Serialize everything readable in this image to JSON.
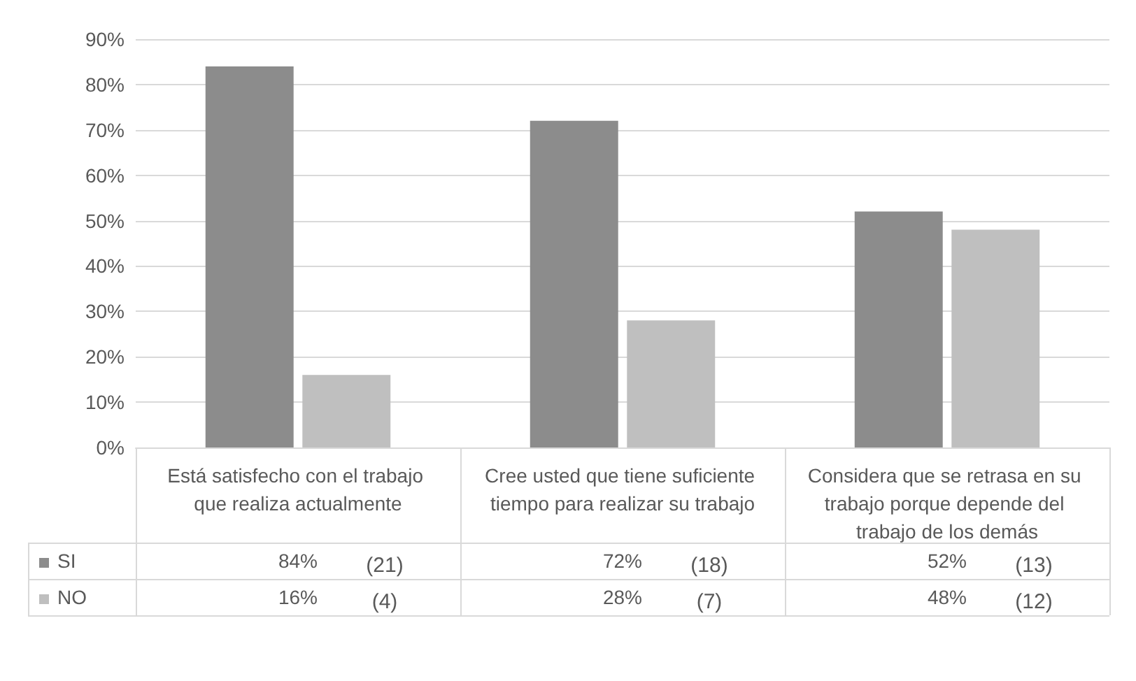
{
  "chart_data": {
    "type": "bar",
    "categories": [
      "Está satisfecho con el trabajo que realiza actualmente",
      "Cree usted que tiene suficiente tiempo para realizar su trabajo",
      "Considera que se retrasa en su trabajo porque depende del trabajo de los demás"
    ],
    "series": [
      {
        "name": "SI",
        "color": "#8c8c8c",
        "values": [
          84,
          72,
          52
        ],
        "value_labels": [
          "84%",
          "72%",
          "52%"
        ]
      },
      {
        "name": "NO",
        "color": "#bfbfbf",
        "values": [
          16,
          28,
          48
        ],
        "value_labels": [
          "16%",
          "28%",
          "48%"
        ]
      }
    ],
    "annotations": [
      "(21)",
      "(18)",
      "(13)",
      "(4)",
      "(7)",
      "(12)"
    ],
    "ylim": [
      0,
      90
    ],
    "yticks": [
      {
        "value": 0,
        "label": "0%"
      },
      {
        "value": 10,
        "label": "10%"
      },
      {
        "value": 20,
        "label": "20%"
      },
      {
        "value": 30,
        "label": "30%"
      },
      {
        "value": 40,
        "label": "40%"
      },
      {
        "value": 50,
        "label": "50%"
      },
      {
        "value": 60,
        "label": "60%"
      },
      {
        "value": 70,
        "label": "70%"
      },
      {
        "value": 80,
        "label": "80%"
      },
      {
        "value": 90,
        "label": "90%"
      }
    ],
    "grid": "y",
    "legend": "bottom"
  }
}
